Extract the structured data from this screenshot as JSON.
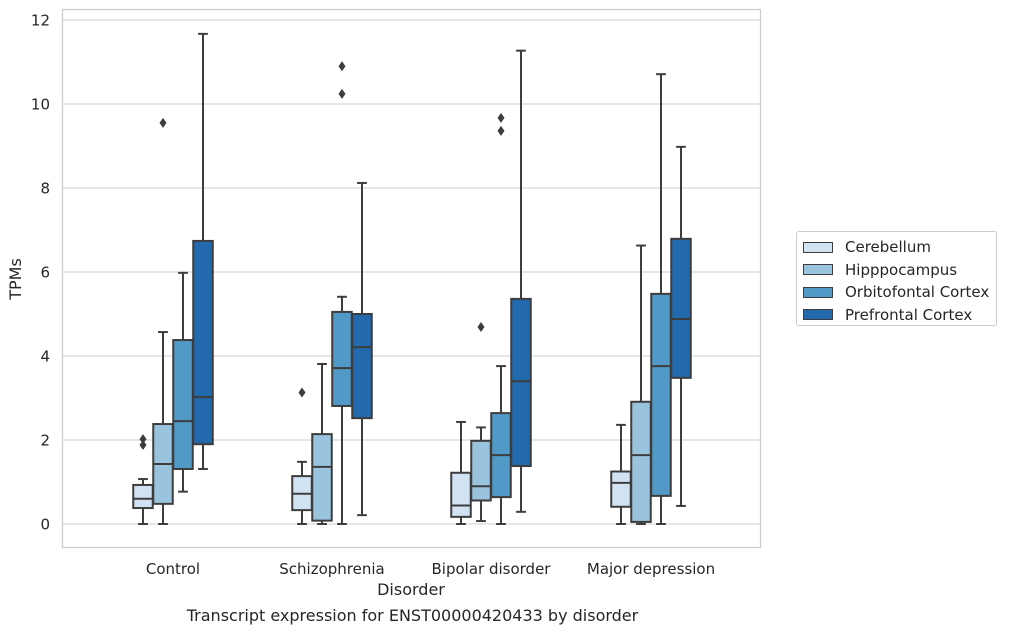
{
  "chart_data": {
    "type": "box",
    "title": "",
    "xlabel": "Disorder",
    "ylabel": "TPMs",
    "ylim": [
      -0.55,
      12.25
    ],
    "yticks": [
      0,
      2,
      4,
      6,
      8,
      10,
      12
    ],
    "grid": "horizontal",
    "legend_position": "right",
    "categories": [
      "Control",
      "Schizophrenia",
      "Bipolar disorder",
      "Major depression"
    ],
    "series": [
      {
        "name": "Cerebellum",
        "color": "#d1e2f2",
        "boxes": [
          {
            "whisker_low": 0.0,
            "q1": 0.38,
            "median": 0.6,
            "q3": 0.93,
            "whisker_high": 1.07,
            "outliers": [
              1.88,
              2.02
            ]
          },
          {
            "whisker_low": 0.0,
            "q1": 0.33,
            "median": 0.72,
            "q3": 1.14,
            "whisker_high": 1.48,
            "outliers": [
              3.13
            ]
          },
          {
            "whisker_low": 0.0,
            "q1": 0.17,
            "median": 0.44,
            "q3": 1.22,
            "whisker_high": 2.43,
            "outliers": []
          },
          {
            "whisker_low": 0.0,
            "q1": 0.41,
            "median": 0.98,
            "q3": 1.25,
            "whisker_high": 2.36,
            "outliers": []
          }
        ]
      },
      {
        "name": "Hipppocampus",
        "color": "#9ac3de",
        "boxes": [
          {
            "whisker_low": 0.0,
            "q1": 0.48,
            "median": 1.43,
            "q3": 2.38,
            "whisker_high": 4.57,
            "outliers": [
              9.55
            ]
          },
          {
            "whisker_low": 0.0,
            "q1": 0.08,
            "median": 1.36,
            "q3": 2.14,
            "whisker_high": 3.81,
            "outliers": []
          },
          {
            "whisker_low": 0.07,
            "q1": 0.56,
            "median": 0.9,
            "q3": 1.98,
            "whisker_high": 2.3,
            "outliers": [
              4.69
            ]
          },
          {
            "whisker_low": 0.0,
            "q1": 0.05,
            "median": 1.64,
            "q3": 2.91,
            "whisker_high": 6.63,
            "outliers": []
          }
        ]
      },
      {
        "name": "Orbitofontal Cortex",
        "color": "#5199c7",
        "boxes": [
          {
            "whisker_low": 0.77,
            "q1": 1.31,
            "median": 2.45,
            "q3": 4.38,
            "whisker_high": 5.98,
            "outliers": []
          },
          {
            "whisker_low": 0.0,
            "q1": 2.81,
            "median": 3.71,
            "q3": 5.05,
            "whisker_high": 5.41,
            "outliers": [
              10.24,
              10.9
            ]
          },
          {
            "whisker_low": 0.0,
            "q1": 0.64,
            "median": 1.64,
            "q3": 2.64,
            "whisker_high": 3.76,
            "outliers": [
              9.36,
              9.67
            ]
          },
          {
            "whisker_low": 0.0,
            "q1": 0.67,
            "median": 3.76,
            "q3": 5.48,
            "whisker_high": 10.71,
            "outliers": []
          }
        ]
      },
      {
        "name": "Prefrontal Cortex",
        "color": "#2369ad",
        "boxes": [
          {
            "whisker_low": 1.31,
            "q1": 1.9,
            "median": 3.02,
            "q3": 6.74,
            "whisker_high": 11.67,
            "outliers": []
          },
          {
            "whisker_low": 0.21,
            "q1": 2.52,
            "median": 4.21,
            "q3": 5.0,
            "whisker_high": 8.12,
            "outliers": []
          },
          {
            "whisker_low": 0.29,
            "q1": 1.38,
            "median": 3.4,
            "q3": 5.36,
            "whisker_high": 11.27,
            "outliers": []
          },
          {
            "whisker_low": 0.43,
            "q1": 3.48,
            "median": 4.88,
            "q3": 6.79,
            "whisker_high": 8.98,
            "outliers": []
          }
        ]
      }
    ],
    "caption": "Transcript expression for ENST00000420433 by disorder"
  }
}
